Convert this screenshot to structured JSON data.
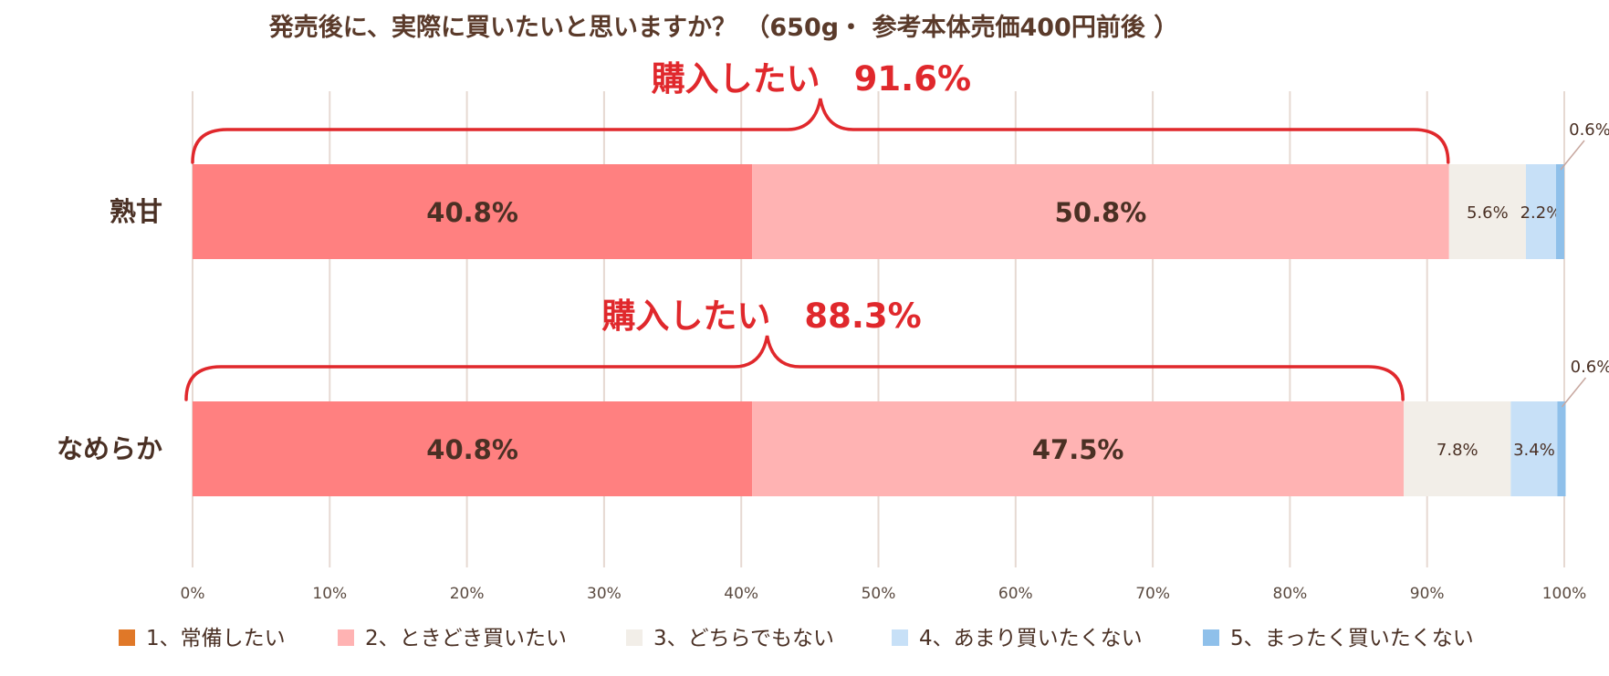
{
  "chart_data": {
    "type": "bar",
    "orientation": "horizontal",
    "stacked": true,
    "title": "発売後に、実際に買いたいと思いますか？ （650g・ 参考本体売価400円前後 ）",
    "categories": [
      "熟甘",
      "なめらか"
    ],
    "series": [
      {
        "name": "1、常備したい",
        "color": "#ff8080",
        "values": [
          40.8,
          40.8
        ],
        "labels": [
          "40.8%",
          "40.8%"
        ]
      },
      {
        "name": "2、ときどき買いたい",
        "color": "#ffb3b3",
        "values": [
          50.8,
          47.5
        ],
        "labels": [
          "50.8%",
          "47.5%"
        ]
      },
      {
        "name": "3、どちらでもない",
        "color": "#f2eee8",
        "values": [
          5.6,
          7.8
        ],
        "labels": [
          "5.6%",
          "7.8%"
        ]
      },
      {
        "name": "4、あまり買いたくない",
        "color": "#c7e0f7",
        "values": [
          2.2,
          3.4
        ],
        "labels": [
          "2.2%",
          "3.4%"
        ]
      },
      {
        "name": "5、まったく買いたくない",
        "color": "#8fc0ea",
        "values": [
          0.6,
          0.6
        ],
        "labels": [
          "0.6%",
          "0.6%"
        ]
      }
    ],
    "legend_markers": [
      "#e07828",
      "#ffb3b3",
      "#f2eee8",
      "#c7e0f7",
      "#8fc0ea"
    ],
    "xlim": [
      0,
      100
    ],
    "x_ticks": [
      "0%",
      "10%",
      "20%",
      "30%",
      "40%",
      "50%",
      "60%",
      "70%",
      "80%",
      "90%",
      "100%"
    ],
    "grid": true,
    "legend_position": "bottom",
    "annotations": [
      {
        "text": "購入したい　91.6%",
        "value": 91.6,
        "category": "熟甘"
      },
      {
        "text": "購入したい　88.3%",
        "value": 88.3,
        "category": "なめらか"
      }
    ],
    "colors": {
      "annotation": "#e0282c",
      "text": "#4a3024",
      "grid": "#e6d9d2"
    }
  }
}
